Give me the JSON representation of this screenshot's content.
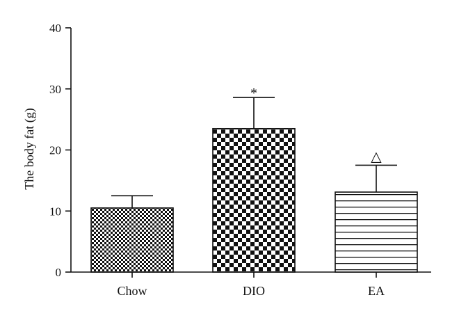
{
  "chart_data": {
    "type": "bar",
    "title": "",
    "xlabel": "",
    "ylabel": "The body fat (g)",
    "ylim": [
      0,
      40
    ],
    "yticks": [
      0,
      10,
      20,
      30,
      40
    ],
    "grid": false,
    "categories": [
      "Chow",
      "DIO",
      "EA"
    ],
    "values": [
      10.5,
      23.5,
      13.1
    ],
    "error_upper": [
      2.0,
      5.1,
      4.4
    ],
    "patterns": [
      "fine-checker",
      "coarse-checker",
      "horizontal-stripes"
    ],
    "annotations": [
      "",
      "*",
      "△"
    ]
  }
}
